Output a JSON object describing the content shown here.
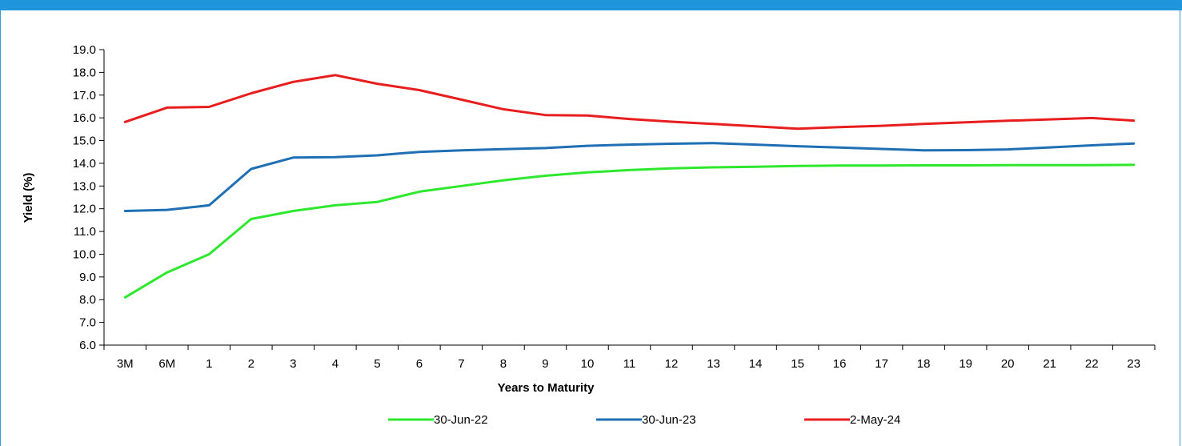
{
  "colors": {
    "accent_bar": "#1f95dc",
    "frame": "#3a9ad9"
  },
  "chart_data": {
    "type": "line",
    "title": "",
    "xlabel": "Years to Maturity",
    "ylabel": "Yield (%)",
    "ylim": [
      6.0,
      19.0
    ],
    "ytick_step": 1.0,
    "grid": false,
    "legend_position": "bottom",
    "categories": [
      "3M",
      "6M",
      "1",
      "2",
      "3",
      "4",
      "5",
      "6",
      "7",
      "8",
      "9",
      "10",
      "11",
      "12",
      "13",
      "14",
      "15",
      "16",
      "17",
      "18",
      "19",
      "20",
      "21",
      "22",
      "23"
    ],
    "series": [
      {
        "name": "30-Jun-22",
        "color": "#2ee82e",
        "values": [
          8.1,
          9.2,
          10.0,
          11.55,
          11.9,
          12.15,
          12.3,
          12.75,
          13.0,
          13.25,
          13.45,
          13.6,
          13.7,
          13.78,
          13.82,
          13.85,
          13.88,
          13.9,
          13.9,
          13.91,
          13.91,
          13.92,
          13.92,
          13.92,
          13.93
        ]
      },
      {
        "name": "30-Jun-23",
        "color": "#1f6fb5",
        "values": [
          11.9,
          11.95,
          12.15,
          13.75,
          14.25,
          14.27,
          14.35,
          14.5,
          14.57,
          14.62,
          14.67,
          14.77,
          14.82,
          14.86,
          14.89,
          14.82,
          14.75,
          14.69,
          14.63,
          14.57,
          14.58,
          14.61,
          14.7,
          14.79,
          14.87
        ]
      },
      {
        "name": "2-May-24",
        "color": "#e81d1d",
        "values": [
          15.82,
          16.45,
          16.48,
          17.08,
          17.58,
          17.88,
          17.5,
          17.22,
          16.8,
          16.38,
          16.12,
          16.1,
          15.95,
          15.83,
          15.73,
          15.63,
          15.52,
          15.59,
          15.65,
          15.73,
          15.8,
          15.87,
          15.93,
          15.99,
          15.88
        ]
      }
    ]
  }
}
